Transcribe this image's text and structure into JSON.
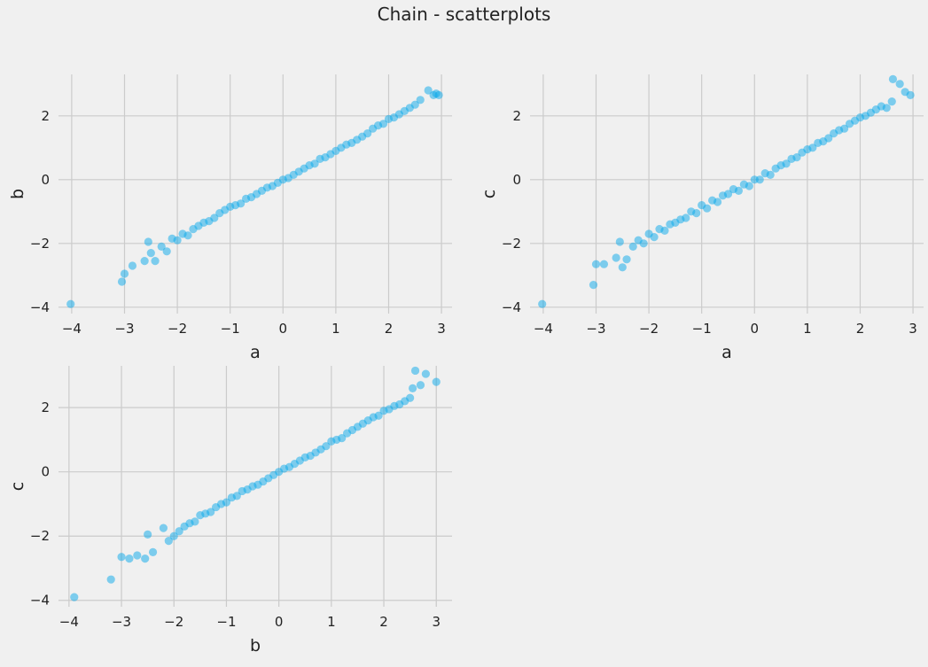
{
  "figure": {
    "title": "Chain - scatterplots",
    "point_color": "#07a8ea",
    "background": "#f0f0f0",
    "grid_color": "#cbcbcb"
  },
  "chart_data": [
    {
      "type": "scatter",
      "xlabel": "a",
      "ylabel": "b",
      "xlim": [
        -4.25,
        3.2
      ],
      "ylim": [
        -4.2,
        3.3
      ],
      "xticks": [
        -4,
        -3,
        -2,
        -1,
        0,
        1,
        2,
        3
      ],
      "yticks": [
        -4,
        -2,
        0,
        2
      ],
      "xtick_labels": [
        "−4",
        "−3",
        "−2",
        "−1",
        "0",
        "1",
        "2",
        "3"
      ],
      "ytick_labels": [
        "−4",
        "−2",
        "0",
        "2"
      ],
      "grid": true,
      "series": [
        {
          "x": [
            -4.02,
            -3.05,
            -3.0,
            -2.85,
            -2.62,
            -2.55,
            -2.5,
            -2.42,
            -2.3,
            -2.2,
            -2.1,
            -2.0,
            -1.9,
            -1.8,
            -1.7,
            -1.6,
            -1.5,
            -1.4,
            -1.3,
            -1.2,
            -1.1,
            -1.0,
            -0.9,
            -0.8,
            -0.7,
            -0.6,
            -0.5,
            -0.4,
            -0.3,
            -0.2,
            -0.1,
            0.0,
            0.1,
            0.2,
            0.3,
            0.4,
            0.5,
            0.6,
            0.7,
            0.8,
            0.9,
            1.0,
            1.1,
            1.2,
            1.3,
            1.4,
            1.5,
            1.6,
            1.7,
            1.8,
            1.9,
            2.0,
            2.1,
            2.2,
            2.3,
            2.4,
            2.5,
            2.6,
            2.75,
            2.85,
            2.9,
            2.95
          ],
          "y": [
            -3.9,
            -3.2,
            -2.95,
            -2.7,
            -2.55,
            -1.95,
            -2.3,
            -2.55,
            -2.1,
            -2.25,
            -1.85,
            -1.9,
            -1.7,
            -1.75,
            -1.55,
            -1.45,
            -1.35,
            -1.3,
            -1.2,
            -1.05,
            -0.95,
            -0.85,
            -0.8,
            -0.75,
            -0.6,
            -0.55,
            -0.45,
            -0.35,
            -0.25,
            -0.2,
            -0.1,
            0.0,
            0.05,
            0.15,
            0.25,
            0.35,
            0.45,
            0.5,
            0.65,
            0.7,
            0.8,
            0.9,
            1.0,
            1.1,
            1.15,
            1.25,
            1.35,
            1.45,
            1.6,
            1.7,
            1.75,
            1.9,
            1.95,
            2.05,
            2.15,
            2.25,
            2.35,
            2.5,
            2.8,
            2.65,
            2.7,
            2.65
          ]
        }
      ]
    },
    {
      "type": "scatter",
      "xlabel": "a",
      "ylabel": "c",
      "xlim": [
        -4.25,
        3.2
      ],
      "ylim": [
        -4.2,
        3.3
      ],
      "xticks": [
        -4,
        -3,
        -2,
        -1,
        0,
        1,
        2,
        3
      ],
      "yticks": [
        -4,
        -2,
        0,
        2
      ],
      "xtick_labels": [
        "−4",
        "−3",
        "−2",
        "−1",
        "0",
        "1",
        "2",
        "3"
      ],
      "ytick_labels": [
        "−4",
        "−2",
        "0",
        "2"
      ],
      "grid": true,
      "series": [
        {
          "x": [
            -4.02,
            -3.05,
            -3.0,
            -2.85,
            -2.62,
            -2.55,
            -2.5,
            -2.42,
            -2.3,
            -2.2,
            -2.1,
            -2.0,
            -1.9,
            -1.8,
            -1.7,
            -1.6,
            -1.5,
            -1.4,
            -1.3,
            -1.2,
            -1.1,
            -1.0,
            -0.9,
            -0.8,
            -0.7,
            -0.6,
            -0.5,
            -0.4,
            -0.3,
            -0.2,
            -0.1,
            0.0,
            0.1,
            0.2,
            0.3,
            0.4,
            0.5,
            0.6,
            0.7,
            0.8,
            0.9,
            1.0,
            1.1,
            1.2,
            1.3,
            1.4,
            1.5,
            1.6,
            1.7,
            1.8,
            1.9,
            2.0,
            2.1,
            2.2,
            2.3,
            2.4,
            2.5,
            2.6,
            2.62,
            2.75,
            2.85,
            2.95
          ],
          "y": [
            -3.9,
            -3.3,
            -2.65,
            -2.65,
            -2.45,
            -1.95,
            -2.75,
            -2.5,
            -2.1,
            -1.9,
            -2.0,
            -1.7,
            -1.8,
            -1.55,
            -1.6,
            -1.4,
            -1.35,
            -1.25,
            -1.2,
            -1.0,
            -1.05,
            -0.8,
            -0.9,
            -0.65,
            -0.7,
            -0.5,
            -0.45,
            -0.3,
            -0.35,
            -0.15,
            -0.2,
            0.0,
            0.0,
            0.2,
            0.15,
            0.35,
            0.45,
            0.5,
            0.65,
            0.7,
            0.85,
            0.95,
            1.0,
            1.15,
            1.2,
            1.3,
            1.45,
            1.55,
            1.6,
            1.75,
            1.85,
            1.95,
            2.0,
            2.1,
            2.2,
            2.3,
            2.25,
            2.45,
            3.15,
            3.0,
            2.75,
            2.65
          ]
        }
      ]
    },
    {
      "type": "scatter",
      "xlabel": "b",
      "ylabel": "c",
      "xlim": [
        -4.2,
        3.3
      ],
      "ylim": [
        -4.2,
        3.3
      ],
      "xticks": [
        -4,
        -3,
        -2,
        -1,
        0,
        1,
        2,
        3
      ],
      "yticks": [
        -4,
        -2,
        0,
        2
      ],
      "xtick_labels": [
        "−4",
        "−3",
        "−2",
        "−1",
        "0",
        "1",
        "2",
        "3"
      ],
      "ytick_labels": [
        "−4",
        "−2",
        "0",
        "2"
      ],
      "grid": true,
      "series": [
        {
          "x": [
            -3.9,
            -3.2,
            -3.0,
            -2.85,
            -2.7,
            -2.55,
            -2.5,
            -2.4,
            -2.2,
            -2.1,
            -2.0,
            -1.9,
            -1.8,
            -1.7,
            -1.6,
            -1.5,
            -1.4,
            -1.3,
            -1.2,
            -1.1,
            -1.0,
            -0.9,
            -0.8,
            -0.7,
            -0.6,
            -0.5,
            -0.4,
            -0.3,
            -0.2,
            -0.1,
            0.0,
            0.1,
            0.2,
            0.3,
            0.4,
            0.5,
            0.6,
            0.7,
            0.8,
            0.9,
            1.0,
            1.1,
            1.2,
            1.3,
            1.4,
            1.5,
            1.6,
            1.7,
            1.8,
            1.9,
            2.0,
            2.1,
            2.2,
            2.3,
            2.4,
            2.5,
            2.55,
            2.6,
            2.7,
            2.8,
            3.0
          ],
          "y": [
            -3.9,
            -3.35,
            -2.65,
            -2.7,
            -2.6,
            -2.7,
            -1.95,
            -2.5,
            -1.75,
            -2.15,
            -2.0,
            -1.85,
            -1.7,
            -1.6,
            -1.55,
            -1.35,
            -1.3,
            -1.25,
            -1.1,
            -1.0,
            -0.95,
            -0.8,
            -0.75,
            -0.6,
            -0.55,
            -0.45,
            -0.4,
            -0.3,
            -0.2,
            -0.1,
            0.0,
            0.1,
            0.15,
            0.25,
            0.35,
            0.45,
            0.5,
            0.6,
            0.7,
            0.8,
            0.95,
            1.0,
            1.05,
            1.2,
            1.3,
            1.4,
            1.5,
            1.6,
            1.7,
            1.75,
            1.9,
            1.95,
            2.05,
            2.1,
            2.2,
            2.3,
            2.6,
            3.15,
            2.7,
            3.05,
            2.8
          ]
        }
      ]
    }
  ]
}
